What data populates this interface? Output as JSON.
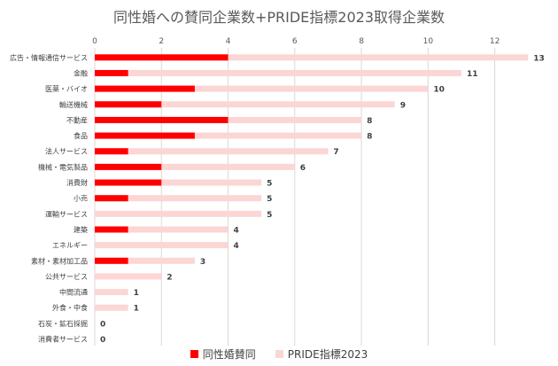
{
  "chart_data": {
    "type": "bar",
    "orientation": "horizontal",
    "title": "同性婚への賛同企業数+PRIDE指標2023取得企業数",
    "categories": [
      "広告・情報通信サービス",
      "金融",
      "医薬・バイオ",
      "輸送機械",
      "不動産",
      "食品",
      "法人サービス",
      "機械・電気製品",
      "消費財",
      "小売",
      "運輸サービス",
      "建築",
      "エネルギー",
      "素材・素材加工品",
      "公共サービス",
      "中間流通",
      "外食・中食",
      "石炭・鉱石採掘",
      "消費者サービス"
    ],
    "series": [
      {
        "name": "同性婚賛同",
        "color": "#ff0000",
        "values": [
          4,
          1,
          3,
          2,
          4,
          3,
          1,
          2,
          2,
          1,
          0,
          1,
          0,
          1,
          0,
          0,
          0,
          0,
          0
        ]
      },
      {
        "name": "PRIDE指標2023",
        "color": "#fcd5d5",
        "values": [
          13,
          11,
          10,
          9,
          8,
          8,
          7,
          6,
          5,
          5,
          5,
          4,
          4,
          3,
          2,
          1,
          1,
          0,
          0
        ]
      }
    ],
    "data_labels": [
      13,
      11,
      10,
      9,
      8,
      8,
      7,
      6,
      5,
      5,
      5,
      4,
      4,
      3,
      2,
      1,
      1,
      0,
      0
    ],
    "xaxis_ticks": [
      0,
      2,
      4,
      6,
      8,
      10,
      12
    ],
    "xlim": [
      0,
      13.1
    ],
    "xaxis_position": "top",
    "grid": true,
    "legend_position": "bottom"
  }
}
